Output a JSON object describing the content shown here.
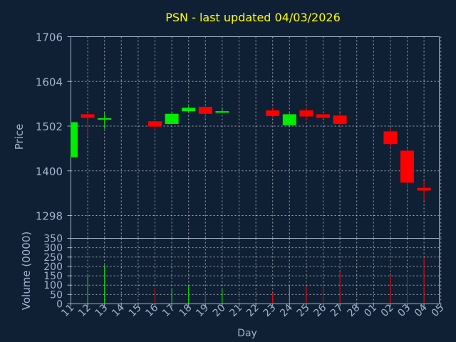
{
  "chart_data": [
    {
      "type": "candlestick",
      "title": "PSN - last updated 04/03/2026",
      "xlabel": "",
      "ylabel": "Price",
      "ylim": [
        1246,
        1706
      ],
      "yticks": [
        1298,
        1400,
        1502,
        1604,
        1706
      ],
      "grid": true,
      "categories": [
        "11",
        "12",
        "13",
        "14",
        "15",
        "16",
        "17",
        "18",
        "19",
        "20",
        "21",
        "22",
        "23",
        "24",
        "25",
        "26",
        "27",
        "28",
        "01",
        "02",
        "03",
        "04",
        "05"
      ],
      "colors": {
        "up": "#00ee00",
        "down": "#ff0000",
        "text": "#ffff00",
        "axis": "#a0b4cc",
        "grid": "#c8c8c8",
        "background": "#0f2035"
      },
      "candles": [
        {
          "x": "11",
          "open": 1431,
          "high": 1511,
          "low": 1431,
          "close": 1511
        },
        {
          "x": "12",
          "open": 1529,
          "high": 1530,
          "low": 1480,
          "close": 1521
        },
        {
          "x": "13",
          "open": 1517,
          "high": 1532,
          "low": 1496,
          "close": 1520
        },
        {
          "x": "16",
          "open": 1513,
          "high": 1513,
          "low": 1492,
          "close": 1501
        },
        {
          "x": "17",
          "open": 1507,
          "high": 1535,
          "low": 1507,
          "close": 1530
        },
        {
          "x": "18",
          "open": 1536,
          "high": 1547,
          "low": 1533,
          "close": 1544
        },
        {
          "x": "19",
          "open": 1546,
          "high": 1546,
          "low": 1518,
          "close": 1530
        },
        {
          "x": "20",
          "open": 1533,
          "high": 1545,
          "low": 1532,
          "close": 1536
        },
        {
          "x": "23",
          "open": 1538,
          "high": 1543,
          "low": 1522,
          "close": 1525
        },
        {
          "x": "24",
          "open": 1504,
          "high": 1531,
          "low": 1500,
          "close": 1529
        },
        {
          "x": "25",
          "open": 1538,
          "high": 1543,
          "low": 1515,
          "close": 1524
        },
        {
          "x": "26",
          "open": 1529,
          "high": 1529,
          "low": 1520,
          "close": 1521
        },
        {
          "x": "27",
          "open": 1526,
          "high": 1531,
          "low": 1500,
          "close": 1507
        },
        {
          "x": "02",
          "open": 1490,
          "high": 1500,
          "low": 1455,
          "close": 1461
        },
        {
          "x": "03",
          "open": 1446,
          "high": 1449,
          "low": 1356,
          "close": 1373
        },
        {
          "x": "04",
          "open": 1361,
          "high": 1378,
          "low": 1332,
          "close": 1355
        }
      ]
    },
    {
      "type": "bar",
      "xlabel": "Day",
      "ylabel": "Volume (0000)",
      "ylim": [
        0,
        350
      ],
      "yticks": [
        0,
        50,
        100,
        150,
        200,
        250,
        300,
        350
      ],
      "grid": true,
      "categories": [
        "11",
        "12",
        "13",
        "14",
        "15",
        "16",
        "17",
        "18",
        "19",
        "20",
        "21",
        "22",
        "23",
        "24",
        "25",
        "26",
        "27",
        "28",
        "01",
        "02",
        "03",
        "04",
        "05"
      ],
      "series": [
        {
          "values": [
            {
              "x": "11",
              "value": 0,
              "dir": "up"
            },
            {
              "x": "12",
              "value": 150,
              "dir": "up"
            },
            {
              "x": "13",
              "value": 208,
              "dir": "up"
            },
            {
              "x": "16",
              "value": 85,
              "dir": "down"
            },
            {
              "x": "17",
              "value": 80,
              "dir": "up"
            },
            {
              "x": "18",
              "value": 96,
              "dir": "up"
            },
            {
              "x": "19",
              "value": 52,
              "dir": "down"
            },
            {
              "x": "20",
              "value": 78,
              "dir": "up"
            },
            {
              "x": "23",
              "value": 60,
              "dir": "down"
            },
            {
              "x": "24",
              "value": 98,
              "dir": "up"
            },
            {
              "x": "25",
              "value": 94,
              "dir": "down"
            },
            {
              "x": "26",
              "value": 100,
              "dir": "down"
            },
            {
              "x": "27",
              "value": 170,
              "dir": "down"
            },
            {
              "x": "02",
              "value": 150,
              "dir": "down"
            },
            {
              "x": "03",
              "value": 163,
              "dir": "down"
            },
            {
              "x": "04",
              "value": 245,
              "dir": "down"
            }
          ]
        }
      ]
    }
  ]
}
